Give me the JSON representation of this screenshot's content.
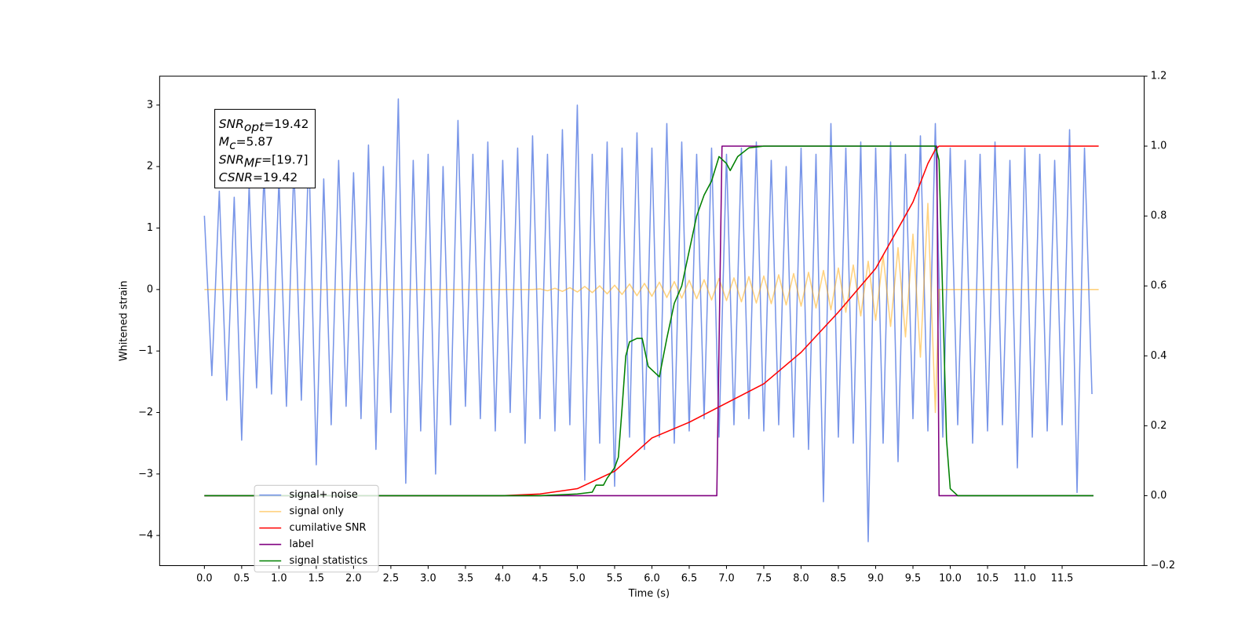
{
  "chart_data": {
    "type": "line",
    "xlabel": "Time (s)",
    "ylabel": "Whitened strain",
    "xlim": [
      -0.6,
      12.6
    ],
    "ylim": [
      -4.49,
      3.47
    ],
    "y2lim": [
      -0.2,
      1.2
    ],
    "xticks": [
      {
        "value": 0,
        "label": "0.0"
      },
      {
        "value": 0.5,
        "label": "0.5"
      },
      {
        "value": 1,
        "label": "1.0"
      },
      {
        "value": 1.5,
        "label": "1.5"
      },
      {
        "value": 2,
        "label": "2.0"
      },
      {
        "value": 2.5,
        "label": "2.5"
      },
      {
        "value": 3,
        "label": "3.0"
      },
      {
        "value": 3.5,
        "label": "3.5"
      },
      {
        "value": 4,
        "label": "4.0"
      },
      {
        "value": 4.5,
        "label": "4.5"
      },
      {
        "value": 5,
        "label": "5.0"
      },
      {
        "value": 5.5,
        "label": "5.5"
      },
      {
        "value": 6,
        "label": "6.0"
      },
      {
        "value": 6.5,
        "label": "6.5"
      },
      {
        "value": 7,
        "label": "7.0"
      },
      {
        "value": 7.5,
        "label": "7.5"
      },
      {
        "value": 8,
        "label": "8.0"
      },
      {
        "value": 8.5,
        "label": "8.5"
      },
      {
        "value": 9,
        "label": "9.0"
      },
      {
        "value": 9.5,
        "label": "9.5"
      },
      {
        "value": 10,
        "label": "10.0"
      },
      {
        "value": 10.5,
        "label": "10.5"
      },
      {
        "value": 11,
        "label": "11.0"
      },
      {
        "value": 11.5,
        "label": "11.5"
      }
    ],
    "yticks": [
      {
        "value": -4,
        "label": "−4"
      },
      {
        "value": -3,
        "label": "−3"
      },
      {
        "value": -2,
        "label": "−2"
      },
      {
        "value": -1,
        "label": "−1"
      },
      0,
      1,
      2,
      3
    ],
    "y2ticks": [
      {
        "value": -0.2,
        "label": "−0.2"
      },
      {
        "value": 0,
        "label": "0.0"
      },
      {
        "value": 0.2,
        "label": "0.2"
      },
      {
        "value": 0.4,
        "label": "0.4"
      },
      {
        "value": 0.6,
        "label": "0.6"
      },
      {
        "value": 0.8,
        "label": "0.8"
      },
      {
        "value": 1,
        "label": "1.0"
      },
      {
        "value": 1.2,
        "label": "1.2"
      }
    ],
    "legend": "lower left",
    "stats_box": [
      {
        "symbol": "SNR",
        "subscript": "opt",
        "text": "=19.42"
      },
      {
        "symbol": "M",
        "subscript": "c",
        "text": "=5.87"
      },
      {
        "symbol": "SNR",
        "subscript": "MF",
        "text": "=[19.7]"
      },
      {
        "symbol": "CSNR",
        "text": "=19.42"
      }
    ],
    "series": [
      {
        "name": "signal+ noise",
        "color": "#7895e8",
        "alpha": 1,
        "axis": "y",
        "x": [
          0,
          0.1,
          0.2,
          0.3,
          0.4,
          0.5,
          0.6,
          0.7,
          0.8,
          0.9,
          1,
          1.1,
          1.2,
          1.3,
          1.4,
          1.5,
          1.6,
          1.7,
          1.8,
          1.9,
          2,
          2.1,
          2.2,
          2.3,
          2.4,
          2.5,
          2.6,
          2.7,
          2.8,
          2.9,
          3,
          3.1,
          3.2,
          3.3,
          3.4,
          3.5,
          3.6,
          3.7,
          3.8,
          3.9,
          4,
          4.1,
          4.2,
          4.3,
          4.4,
          4.5,
          4.6,
          4.7,
          4.8,
          4.9,
          5,
          5.1,
          5.2,
          5.3,
          5.4,
          5.5,
          5.6,
          5.7,
          5.8,
          5.9,
          6,
          6.1,
          6.2,
          6.3,
          6.4,
          6.5,
          6.6,
          6.7,
          6.8,
          6.9,
          7,
          7.1,
          7.2,
          7.3,
          7.4,
          7.5,
          7.6,
          7.7,
          7.8,
          7.9,
          8,
          8.1,
          8.2,
          8.3,
          8.4,
          8.5,
          8.6,
          8.7,
          8.8,
          8.9,
          9,
          9.1,
          9.2,
          9.3,
          9.4,
          9.5,
          9.6,
          9.7,
          9.8,
          9.9,
          10,
          10.1,
          10.2,
          10.3,
          10.4,
          10.5,
          10.6,
          10.7,
          10.8,
          10.9,
          11,
          11.1,
          11.2,
          11.3,
          11.4,
          11.5,
          11.6,
          11.7,
          11.8,
          11.9
        ],
        "values": [
          1.2,
          -1.4,
          1.6,
          -1.8,
          1.5,
          -2.45,
          1.7,
          -1.6,
          1.9,
          -1.7,
          1.8,
          -1.9,
          2.0,
          -1.8,
          2.3,
          -2.85,
          1.8,
          -2.2,
          2.1,
          -1.9,
          1.9,
          -2.1,
          2.35,
          -2.6,
          2.0,
          -2.0,
          3.1,
          -3.15,
          2.1,
          -2.3,
          2.2,
          -3.0,
          2.0,
          -2.2,
          2.75,
          -1.9,
          2.2,
          -2.1,
          2.4,
          -2.3,
          2.1,
          -2.0,
          2.3,
          -2.5,
          2.5,
          -2.1,
          2.2,
          -2.3,
          2.6,
          -2.2,
          3.0,
          -3.1,
          2.2,
          -2.5,
          2.4,
          -3.2,
          2.3,
          -2.4,
          2.55,
          -2.6,
          2.3,
          -2.4,
          2.7,
          -2.5,
          2.4,
          -2.3,
          2.2,
          -2.1,
          2.3,
          -2.4,
          2.2,
          -2.2,
          2.3,
          -2.1,
          2.4,
          -2.3,
          2.1,
          -2.2,
          2.0,
          -2.4,
          2.3,
          -2.6,
          2.2,
          -3.45,
          2.7,
          -2.4,
          2.3,
          -2.5,
          2.4,
          -4.1,
          2.3,
          -2.5,
          2.4,
          -2.8,
          2.2,
          -2.1,
          2.5,
          -2.3,
          2.7,
          -2.4,
          2.3,
          -2.2,
          2.1,
          -2.5,
          2.2,
          -2.3,
          2.4,
          -2.2,
          2.1,
          -2.9,
          2.3,
          -2.4,
          2.2,
          -2.3,
          2.1,
          -2.2,
          2.6,
          -3.3,
          2.3,
          -1.7
        ]
      },
      {
        "name": "signal only",
        "color": "#ffa500",
        "alpha": 0.5,
        "axis": "y",
        "x": [
          0,
          4.4,
          4.5,
          4.6,
          4.7,
          4.8,
          4.9,
          5,
          5.1,
          5.2,
          5.3,
          5.4,
          5.5,
          5.6,
          5.7,
          5.8,
          5.9,
          6,
          6.1,
          6.2,
          6.3,
          6.4,
          6.5,
          6.6,
          6.7,
          6.8,
          6.9,
          7,
          7.1,
          7.2,
          7.3,
          7.4,
          7.5,
          7.6,
          7.7,
          7.8,
          7.9,
          8,
          8.1,
          8.2,
          8.3,
          8.4,
          8.5,
          8.6,
          8.7,
          8.8,
          8.9,
          9,
          9.1,
          9.2,
          9.3,
          9.4,
          9.5,
          9.6,
          9.7,
          9.8,
          9.85,
          11.99
        ],
        "values": [
          0,
          0,
          0.01,
          -0.02,
          0.02,
          -0.03,
          0.03,
          -0.04,
          0.05,
          -0.05,
          0.06,
          -0.07,
          0.07,
          -0.08,
          0.09,
          -0.1,
          0.1,
          -0.11,
          0.12,
          -0.13,
          0.13,
          -0.14,
          0.15,
          -0.15,
          0.16,
          -0.17,
          0.18,
          -0.18,
          0.19,
          -0.2,
          0.21,
          -0.22,
          0.22,
          -0.23,
          0.24,
          -0.25,
          0.26,
          -0.27,
          0.28,
          -0.3,
          0.31,
          -0.33,
          0.35,
          -0.37,
          0.4,
          -0.43,
          0.46,
          -0.5,
          0.55,
          -0.6,
          0.68,
          -0.77,
          0.9,
          -1.1,
          1.4,
          -2.0,
          0,
          0
        ]
      },
      {
        "name": "cumilative SNR",
        "color": "#ff0000",
        "alpha": 1,
        "axis": "y2",
        "x": [
          0,
          4,
          4.5,
          5,
          5.5,
          6,
          6.5,
          7,
          7.5,
          8,
          8.5,
          9,
          9.5,
          9.7,
          9.8,
          9.85,
          11.99
        ],
        "values": [
          0,
          0,
          0.005,
          0.02,
          0.07,
          0.165,
          0.21,
          0.265,
          0.32,
          0.41,
          0.525,
          0.65,
          0.84,
          0.95,
          0.99,
          1.0,
          1.0
        ]
      },
      {
        "name": "label",
        "color": "#800080",
        "alpha": 1,
        "axis": "y2",
        "x": [
          0,
          6.87,
          6.94,
          9.82,
          9.85,
          11.92
        ],
        "values": [
          0,
          0,
          1,
          1,
          0,
          0
        ]
      },
      {
        "name": "signal statistics",
        "color": "#008000",
        "alpha": 1,
        "axis": "y2",
        "x": [
          0,
          4.5,
          5,
          5.2,
          5.25,
          5.35,
          5.4,
          5.5,
          5.55,
          5.6,
          5.65,
          5.7,
          5.8,
          5.87,
          5.95,
          6.1,
          6.2,
          6.3,
          6.4,
          6.5,
          6.6,
          6.7,
          6.8,
          6.9,
          7,
          7.05,
          7.15,
          7.3,
          7.5,
          9.8,
          9.85,
          9.95,
          10,
          10.1,
          11.92
        ],
        "values": [
          0,
          0,
          0.005,
          0.01,
          0.03,
          0.03,
          0.05,
          0.08,
          0.11,
          0.25,
          0.4,
          0.44,
          0.45,
          0.45,
          0.37,
          0.34,
          0.45,
          0.55,
          0.6,
          0.7,
          0.8,
          0.86,
          0.9,
          0.97,
          0.95,
          0.93,
          0.97,
          0.995,
          1.0,
          1.0,
          0.96,
          0.16,
          0.02,
          0,
          0
        ]
      }
    ]
  }
}
